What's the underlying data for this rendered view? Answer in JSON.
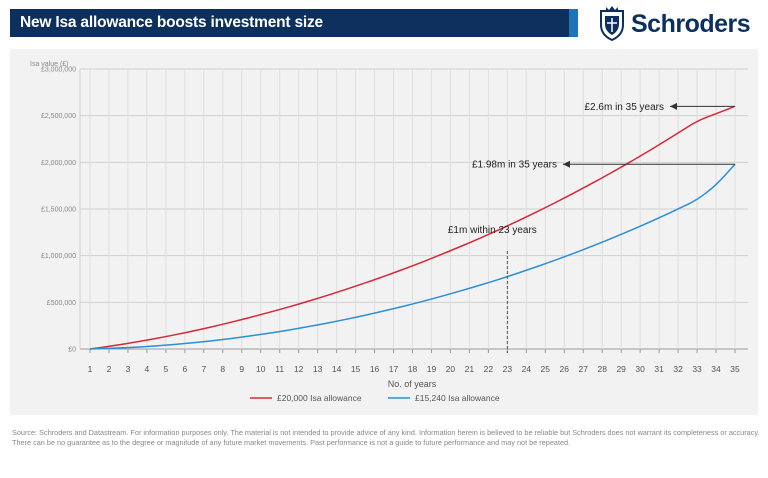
{
  "header": {
    "title": "New Isa allowance boosts investment size"
  },
  "brand": {
    "name": "Schroders",
    "crest_icon": "crest-icon",
    "color": "#0d2f5e"
  },
  "chart_data": {
    "type": "line",
    "ylabel": "Isa value (£)",
    "xlabel": "No. of years",
    "x": [
      1,
      2,
      3,
      4,
      5,
      6,
      7,
      8,
      9,
      10,
      11,
      12,
      13,
      14,
      15,
      16,
      17,
      18,
      19,
      20,
      21,
      22,
      23,
      24,
      25,
      26,
      27,
      28,
      29,
      30,
      31,
      32,
      33,
      34,
      35
    ],
    "x_tick_labels": [
      "1",
      "2",
      "3",
      "4",
      "5",
      "6",
      "7",
      "8",
      "9",
      "10",
      "11",
      "12",
      "13",
      "14",
      "15",
      "16",
      "17",
      "18",
      "19",
      "20",
      "21",
      "22",
      "23",
      "24",
      "25",
      "26",
      "27",
      "28",
      "29",
      "30",
      "31",
      "32",
      "33",
      "34",
      "35"
    ],
    "ylim": [
      0,
      3000000
    ],
    "y_ticks": [
      0,
      500000,
      1000000,
      1500000,
      2000000,
      2500000,
      3000000
    ],
    "y_tick_labels": [
      "£0",
      "£500,000",
      "£1,000,000",
      "£1,500,000",
      "£2,000,000",
      "£2,500,000",
      "£3,000,000"
    ],
    "grid": true,
    "legend_position": "bottom",
    "series": [
      {
        "name": "£20,000 Isa allowance",
        "color": "#d62839",
        "values": [
          0,
          28000,
          60000,
          95000,
          133000,
          174000,
          218000,
          265000,
          315000,
          368000,
          423000,
          481000,
          542000,
          606000,
          673000,
          742000,
          815000,
          891000,
          970000,
          1053000,
          1138000,
          1227000,
          1319000,
          1415000,
          1514000,
          1617000,
          1724000,
          1834000,
          1948000,
          2066000,
          2188000,
          2314000,
          2443000,
          2521000,
          2600000
        ]
      },
      {
        "name": "£15,240 Isa allowance",
        "color": "#2b8fd3",
        "values": [
          0,
          7000,
          15000,
          26000,
          41000,
          58000,
          78000,
          101000,
          127000,
          156000,
          187000,
          221000,
          258000,
          297000,
          339000,
          385000,
          432000,
          482000,
          535000,
          591000,
          650000,
          711000,
          775000,
          843000,
          914000,
          987000,
          1064000,
          1144000,
          1228000,
          1315000,
          1406000,
          1500000,
          1597000,
          1755000,
          1980000
        ]
      }
    ],
    "annotations": [
      {
        "text": "£2.6m in 35 years",
        "x": 35,
        "y": 2600000
      },
      {
        "text": "£1.98m in 35 years",
        "x": 35,
        "y": 1980000
      },
      {
        "text": "£1m within 23 years",
        "x": 23,
        "y": 1050000
      }
    ]
  },
  "footer": {
    "source": "Source: Schroders and Datastream. For information purposes only. The material is not intended to provide advice of any kind. Information herein is believed to be reliable but Schroders does not warrant its completeness or accuracy. There can be no guarantee as to the degree or magnitude of any future market movements. Past performance is not a guide to future performance and may not be repeated."
  }
}
